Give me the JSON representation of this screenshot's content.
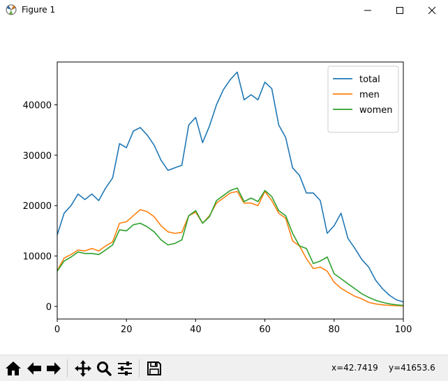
{
  "window": {
    "title": "Figure 1"
  },
  "status": {
    "x_readout": "x=42.7419",
    "y_readout": "y=41653.6"
  },
  "toolbar": {
    "buttons": [
      "home-icon",
      "back-icon",
      "forward-icon",
      "pan-icon",
      "zoom-icon",
      "configure-icon",
      "save-icon"
    ]
  },
  "colors": {
    "total": "#1f77b4",
    "men": "#ff7f0e",
    "women": "#2ca02c"
  },
  "chart_data": {
    "type": "line",
    "title": "",
    "xlabel": "",
    "ylabel": "",
    "xlim": [
      0,
      100
    ],
    "ylim": [
      -2500,
      48500
    ],
    "xticks": [
      "0",
      "20",
      "40",
      "60",
      "80",
      "100"
    ],
    "xtick_values": [
      0,
      20,
      40,
      60,
      80,
      100
    ],
    "yticks": [
      "0",
      "10000",
      "20000",
      "30000",
      "40000"
    ],
    "ytick_values": [
      0,
      10000,
      20000,
      30000,
      40000
    ],
    "grid": false,
    "legend_position": "top-right",
    "x": [
      0,
      2,
      4,
      6,
      8,
      10,
      12,
      14,
      16,
      18,
      20,
      22,
      24,
      26,
      28,
      30,
      32,
      34,
      36,
      38,
      40,
      42,
      44,
      46,
      48,
      50,
      52,
      54,
      56,
      58,
      60,
      62,
      64,
      66,
      68,
      70,
      72,
      74,
      76,
      78,
      80,
      82,
      84,
      86,
      88,
      90,
      92,
      94,
      96,
      98,
      100
    ],
    "series": [
      {
        "name": "total",
        "values": [
          14200,
          18500,
          20000,
          22300,
          21200,
          22300,
          21000,
          23500,
          25500,
          32300,
          31500,
          34800,
          35500,
          34000,
          32000,
          29000,
          27000,
          27500,
          28000,
          36000,
          37500,
          32500,
          35800,
          40000,
          43000,
          45000,
          46500,
          41000,
          42000,
          41000,
          44500,
          43200,
          36000,
          33500,
          27500,
          26000,
          22500,
          22500,
          21000,
          14500,
          16000,
          18500,
          13500,
          11500,
          9300,
          7800,
          5200,
          3500,
          2200,
          1300,
          900
        ]
      },
      {
        "name": "men",
        "values": [
          7100,
          9600,
          10300,
          11200,
          11000,
          11500,
          11000,
          12000,
          12800,
          16500,
          16800,
          18000,
          19200,
          18800,
          17800,
          16000,
          14800,
          14500,
          14700,
          18000,
          18700,
          16500,
          18000,
          20500,
          21500,
          22500,
          22800,
          20500,
          20500,
          20000,
          22800,
          21000,
          18500,
          17500,
          13000,
          12000,
          9500,
          7500,
          7800,
          7000,
          4800,
          3600,
          2800,
          2000,
          1500,
          800,
          500,
          300,
          200,
          150,
          100
        ]
      },
      {
        "name": "women",
        "values": [
          7000,
          9000,
          9800,
          10800,
          10500,
          10500,
          10300,
          11200,
          12200,
          15200,
          15000,
          16200,
          16500,
          15800,
          14800,
          13200,
          12200,
          12500,
          13200,
          18000,
          19000,
          16500,
          17800,
          21000,
          22000,
          23000,
          23500,
          20800,
          21500,
          20800,
          23000,
          21800,
          19000,
          18000,
          14500,
          12000,
          11500,
          8500,
          9000,
          9800,
          6500,
          5500,
          4500,
          3500,
          2500,
          1800,
          1200,
          800,
          500,
          300,
          200
        ]
      }
    ]
  }
}
